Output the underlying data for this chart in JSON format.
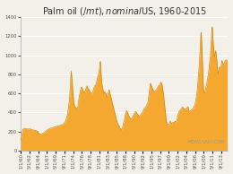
{
  "title": "Palm oil ($/mt), nominal $US, 1960-2015",
  "ylabel_ticks": [
    0,
    200,
    400,
    600,
    800,
    1000,
    1200,
    1400
  ],
  "ylim": [
    0,
    1400
  ],
  "fill_color": "#F5A830",
  "line_color": "#D4880A",
  "background_color": "#F2F0E8",
  "plot_bg_color": "#F2F0E8",
  "watermark": "MONGABAY.COM",
  "x_tick_labels": [
    "1/1/60",
    "5/1/62",
    "9/1/64",
    "1/1/67",
    "5/1/69",
    "9/1/71",
    "1/1/74",
    "5/1/76",
    "9/1/78",
    "1/1/81",
    "5/1/83",
    "9/1/85",
    "1/1/88",
    "5/1/90",
    "9/1/92",
    "1/1/95",
    "5/1/97",
    "9/1/99",
    "1/1/02",
    "5/1/04",
    "9/1/06",
    "1/1/09",
    "5/1/11",
    "9/1/13"
  ],
  "title_fontsize": 7.0,
  "tick_fontsize": 3.8,
  "watermark_fontsize": 3.5,
  "xlim_start": 1960.0,
  "xlim_end": 2015.5,
  "figsize": [
    2.6,
    1.94
  ],
  "dpi": 100
}
